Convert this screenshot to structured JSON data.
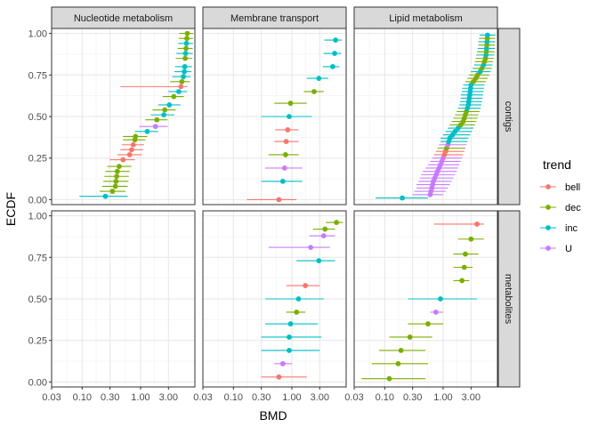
{
  "chart_data": {
    "type": "scatter",
    "xlabel": "BMD",
    "ylabel": "ECDF",
    "x_scale": "log10",
    "xlim": [
      0.03,
      8.5
    ],
    "ylim": [
      -0.03,
      1.03
    ],
    "x_ticks": [
      0.03,
      0.1,
      0.3,
      1,
      3
    ],
    "x_tick_labels": [
      "0.03",
      "0.10",
      "0.30",
      "1.00",
      "3.00"
    ],
    "y_ticks": [
      0,
      0.25,
      0.5,
      0.75,
      1
    ],
    "y_tick_labels": [
      "0.00",
      "0.25",
      "0.50",
      "0.75",
      "1.00"
    ],
    "grid": true,
    "columns": [
      "Nucleotide metabolism",
      "Membrane transport",
      "Lipid metabolism"
    ],
    "rows": [
      "contigs",
      "metabolites"
    ],
    "legend": {
      "title": "trend",
      "position": "right",
      "entries": [
        {
          "name": "bell",
          "color": "#F8766D"
        },
        {
          "name": "dec",
          "color": "#7CAE00"
        },
        {
          "name": "inc",
          "color": "#00BFC4"
        },
        {
          "name": "U",
          "color": "#C77CFF"
        }
      ]
    },
    "series_colors": {
      "bell": "#F8766D",
      "dec": "#7CAE00",
      "inc": "#00BFC4",
      "U": "#C77CFF"
    },
    "panels": [
      {
        "column": "Nucleotide metabolism",
        "row": "contigs",
        "points": [
          {
            "trend": "inc",
            "bmd": 0.25,
            "lo": 0.09,
            "hi": 0.6,
            "ecdf": 0.02
          },
          {
            "trend": "dec",
            "bmd": 0.33,
            "lo": 0.2,
            "hi": 0.55,
            "ecdf": 0.05
          },
          {
            "trend": "dec",
            "bmd": 0.37,
            "lo": 0.22,
            "hi": 0.6,
            "ecdf": 0.08
          },
          {
            "trend": "dec",
            "bmd": 0.38,
            "lo": 0.23,
            "hi": 0.62,
            "ecdf": 0.11
          },
          {
            "trend": "dec",
            "bmd": 0.39,
            "lo": 0.24,
            "hi": 0.63,
            "ecdf": 0.14
          },
          {
            "trend": "dec",
            "bmd": 0.4,
            "lo": 0.25,
            "hi": 0.65,
            "ecdf": 0.17
          },
          {
            "trend": "dec",
            "bmd": 0.43,
            "lo": 0.27,
            "hi": 0.7,
            "ecdf": 0.2
          },
          {
            "trend": "bell",
            "bmd": 0.5,
            "lo": 0.3,
            "hi": 0.8,
            "ecdf": 0.24
          },
          {
            "trend": "bell",
            "bmd": 0.65,
            "lo": 0.4,
            "hi": 1.05,
            "ecdf": 0.27
          },
          {
            "trend": "bell",
            "bmd": 0.7,
            "lo": 0.45,
            "hi": 1.1,
            "ecdf": 0.3
          },
          {
            "trend": "bell",
            "bmd": 0.75,
            "lo": 0.48,
            "hi": 1.15,
            "ecdf": 0.33
          },
          {
            "trend": "dec",
            "bmd": 0.8,
            "lo": 0.5,
            "hi": 1.2,
            "ecdf": 0.36
          },
          {
            "trend": "dec",
            "bmd": 0.82,
            "lo": 0.5,
            "hi": 1.3,
            "ecdf": 0.38
          },
          {
            "trend": "inc",
            "bmd": 1.3,
            "lo": 0.8,
            "hi": 2.0,
            "ecdf": 0.41
          },
          {
            "trend": "U",
            "bmd": 1.8,
            "lo": 0.95,
            "hi": 2.9,
            "ecdf": 0.44
          },
          {
            "trend": "dec",
            "bmd": 1.9,
            "lo": 1.2,
            "hi": 2.9,
            "ecdf": 0.48
          },
          {
            "trend": "inc",
            "bmd": 2.5,
            "lo": 1.5,
            "hi": 3.8,
            "ecdf": 0.51
          },
          {
            "trend": "dec",
            "bmd": 2.6,
            "lo": 1.6,
            "hi": 4.0,
            "ecdf": 0.54
          },
          {
            "trend": "inc",
            "bmd": 3.1,
            "lo": 2.0,
            "hi": 4.8,
            "ecdf": 0.57
          },
          {
            "trend": "dec",
            "bmd": 3.7,
            "lo": 2.4,
            "hi": 5.5,
            "ecdf": 0.62
          },
          {
            "trend": "inc",
            "bmd": 4.5,
            "lo": 3.0,
            "hi": 6.2,
            "ecdf": 0.65
          },
          {
            "trend": "bell",
            "bmd": 4.9,
            "lo": 0.45,
            "hi": 6.4,
            "ecdf": 0.68
          },
          {
            "trend": "dec",
            "bmd": 5.1,
            "lo": 3.2,
            "hi": 7.0,
            "ecdf": 0.71
          },
          {
            "trend": "inc",
            "bmd": 5.4,
            "lo": 3.5,
            "hi": 7.2,
            "ecdf": 0.74
          },
          {
            "trend": "inc",
            "bmd": 5.6,
            "lo": 3.8,
            "hi": 7.4,
            "ecdf": 0.77
          },
          {
            "trend": "inc",
            "bmd": 5.7,
            "lo": 3.9,
            "hi": 7.6,
            "ecdf": 0.8
          },
          {
            "trend": "dec",
            "bmd": 5.8,
            "lo": 4.0,
            "hi": 7.7,
            "ecdf": 0.85
          },
          {
            "trend": "inc",
            "bmd": 5.9,
            "lo": 4.1,
            "hi": 7.8,
            "ecdf": 0.88
          },
          {
            "trend": "dec",
            "bmd": 6.0,
            "lo": 4.3,
            "hi": 7.8,
            "ecdf": 0.91
          },
          {
            "trend": "inc",
            "bmd": 6.1,
            "lo": 4.4,
            "hi": 7.9,
            "ecdf": 0.94
          },
          {
            "trend": "dec",
            "bmd": 6.2,
            "lo": 4.5,
            "hi": 7.9,
            "ecdf": 0.97
          },
          {
            "trend": "dec",
            "bmd": 6.3,
            "lo": 4.6,
            "hi": 8.0,
            "ecdf": 1.0
          }
        ]
      },
      {
        "column": "Membrane transport",
        "row": "contigs",
        "points": [
          {
            "trend": "bell",
            "bmd": 0.6,
            "lo": 0.17,
            "hi": 1.2,
            "ecdf": 0.0
          },
          {
            "trend": "inc",
            "bmd": 0.7,
            "lo": 0.3,
            "hi": 1.5,
            "ecdf": 0.11
          },
          {
            "trend": "U",
            "bmd": 0.75,
            "lo": 0.35,
            "hi": 1.5,
            "ecdf": 0.19
          },
          {
            "trend": "dec",
            "bmd": 0.78,
            "lo": 0.4,
            "hi": 1.3,
            "ecdf": 0.27
          },
          {
            "trend": "bell",
            "bmd": 0.8,
            "lo": 0.5,
            "hi": 1.3,
            "ecdf": 0.35
          },
          {
            "trend": "bell",
            "bmd": 0.85,
            "lo": 0.52,
            "hi": 1.3,
            "ecdf": 0.42
          },
          {
            "trend": "inc",
            "bmd": 0.9,
            "lo": 0.3,
            "hi": 2.2,
            "ecdf": 0.5
          },
          {
            "trend": "dec",
            "bmd": 0.95,
            "lo": 0.5,
            "hi": 1.8,
            "ecdf": 0.58
          },
          {
            "trend": "dec",
            "bmd": 2.4,
            "lo": 1.6,
            "hi": 3.5,
            "ecdf": 0.65
          },
          {
            "trend": "inc",
            "bmd": 2.9,
            "lo": 1.8,
            "hi": 4.2,
            "ecdf": 0.73
          },
          {
            "trend": "inc",
            "bmd": 5.0,
            "lo": 3.4,
            "hi": 6.5,
            "ecdf": 0.8
          },
          {
            "trend": "inc",
            "bmd": 5.4,
            "lo": 3.5,
            "hi": 7.0,
            "ecdf": 0.88
          },
          {
            "trend": "inc",
            "bmd": 5.6,
            "lo": 3.6,
            "hi": 7.2,
            "ecdf": 0.96
          }
        ]
      },
      {
        "column": "Lipid metabolism",
        "row": "contigs",
        "points": [
          {
            "trend": "inc",
            "bmd": 0.2,
            "lo": 0.07,
            "hi": 0.55,
            "ecdf": 0.01
          },
          {
            "trend": "U",
            "bmd": 0.6,
            "lo": 0.3,
            "hi": 1.0,
            "ecdf": 0.03
          },
          {
            "trend": "U",
            "bmd": 0.62,
            "lo": 0.32,
            "hi": 1.1,
            "ecdf": 0.05
          },
          {
            "trend": "U",
            "bmd": 0.64,
            "lo": 0.35,
            "hi": 1.2,
            "ecdf": 0.07
          },
          {
            "trend": "U",
            "bmd": 0.66,
            "lo": 0.35,
            "hi": 1.3,
            "ecdf": 0.09
          },
          {
            "trend": "U",
            "bmd": 0.68,
            "lo": 0.38,
            "hi": 1.4,
            "ecdf": 0.11
          },
          {
            "trend": "U",
            "bmd": 0.72,
            "lo": 0.4,
            "hi": 1.5,
            "ecdf": 0.13
          },
          {
            "trend": "U",
            "bmd": 0.76,
            "lo": 0.42,
            "hi": 1.6,
            "ecdf": 0.15
          },
          {
            "trend": "U",
            "bmd": 0.8,
            "lo": 0.45,
            "hi": 1.7,
            "ecdf": 0.17
          },
          {
            "trend": "U",
            "bmd": 0.85,
            "lo": 0.5,
            "hi": 1.8,
            "ecdf": 0.19
          },
          {
            "trend": "U",
            "bmd": 0.9,
            "lo": 0.55,
            "hi": 1.9,
            "ecdf": 0.21
          },
          {
            "trend": "U",
            "bmd": 0.95,
            "lo": 0.6,
            "hi": 2.0,
            "ecdf": 0.23
          },
          {
            "trend": "U",
            "bmd": 1.0,
            "lo": 0.65,
            "hi": 2.1,
            "ecdf": 0.25
          },
          {
            "trend": "bell",
            "bmd": 1.05,
            "lo": 0.7,
            "hi": 2.2,
            "ecdf": 0.27
          },
          {
            "trend": "bell",
            "bmd": 1.1,
            "lo": 0.75,
            "hi": 2.3,
            "ecdf": 0.29
          },
          {
            "trend": "dec",
            "bmd": 1.15,
            "lo": 0.8,
            "hi": 2.4,
            "ecdf": 0.31
          },
          {
            "trend": "U",
            "bmd": 1.2,
            "lo": 0.85,
            "hi": 2.5,
            "ecdf": 0.33
          },
          {
            "trend": "inc",
            "bmd": 1.25,
            "lo": 0.9,
            "hi": 2.6,
            "ecdf": 0.35
          },
          {
            "trend": "inc",
            "bmd": 1.3,
            "lo": 0.9,
            "hi": 2.7,
            "ecdf": 0.37
          },
          {
            "trend": "inc",
            "bmd": 1.45,
            "lo": 1.0,
            "hi": 2.9,
            "ecdf": 0.39
          },
          {
            "trend": "inc",
            "bmd": 1.6,
            "lo": 1.1,
            "hi": 3.1,
            "ecdf": 0.41
          },
          {
            "trend": "inc",
            "bmd": 1.8,
            "lo": 1.2,
            "hi": 3.3,
            "ecdf": 0.43
          },
          {
            "trend": "dec",
            "bmd": 2.0,
            "lo": 1.3,
            "hi": 3.5,
            "ecdf": 0.45
          },
          {
            "trend": "dec",
            "bmd": 2.2,
            "lo": 1.4,
            "hi": 3.7,
            "ecdf": 0.47
          },
          {
            "trend": "dec",
            "bmd": 2.3,
            "lo": 1.5,
            "hi": 3.9,
            "ecdf": 0.49
          },
          {
            "trend": "dec",
            "bmd": 2.4,
            "lo": 1.6,
            "hi": 4.0,
            "ecdf": 0.51
          },
          {
            "trend": "dec",
            "bmd": 2.5,
            "lo": 1.7,
            "hi": 4.2,
            "ecdf": 0.53
          },
          {
            "trend": "inc",
            "bmd": 2.6,
            "lo": 1.8,
            "hi": 4.4,
            "ecdf": 0.55
          },
          {
            "trend": "inc",
            "bmd": 2.7,
            "lo": 1.9,
            "hi": 4.5,
            "ecdf": 0.57
          },
          {
            "trend": "inc",
            "bmd": 2.75,
            "lo": 1.95,
            "hi": 4.6,
            "ecdf": 0.59
          },
          {
            "trend": "inc",
            "bmd": 2.8,
            "lo": 2.0,
            "hi": 4.7,
            "ecdf": 0.61
          },
          {
            "trend": "inc",
            "bmd": 2.85,
            "lo": 2.0,
            "hi": 4.8,
            "ecdf": 0.63
          },
          {
            "trend": "inc",
            "bmd": 2.9,
            "lo": 2.1,
            "hi": 4.9,
            "ecdf": 0.65
          },
          {
            "trend": "inc",
            "bmd": 2.95,
            "lo": 2.1,
            "hi": 5.0,
            "ecdf": 0.67
          },
          {
            "trend": "inc",
            "bmd": 3.0,
            "lo": 2.2,
            "hi": 5.1,
            "ecdf": 0.69
          },
          {
            "trend": "dec",
            "bmd": 3.3,
            "lo": 2.4,
            "hi": 5.4,
            "ecdf": 0.71
          },
          {
            "trend": "dec",
            "bmd": 3.6,
            "lo": 2.6,
            "hi": 5.8,
            "ecdf": 0.73
          },
          {
            "trend": "dec",
            "bmd": 3.9,
            "lo": 2.8,
            "hi": 6.2,
            "ecdf": 0.75
          },
          {
            "trend": "inc",
            "bmd": 4.3,
            "lo": 3.0,
            "hi": 6.5,
            "ecdf": 0.77
          },
          {
            "trend": "dec",
            "bmd": 4.6,
            "lo": 3.2,
            "hi": 6.8,
            "ecdf": 0.79
          },
          {
            "trend": "inc",
            "bmd": 4.9,
            "lo": 3.4,
            "hi": 7.0,
            "ecdf": 0.81
          },
          {
            "trend": "dec",
            "bmd": 5.1,
            "lo": 3.5,
            "hi": 7.2,
            "ecdf": 0.83
          },
          {
            "trend": "dec",
            "bmd": 5.3,
            "lo": 3.6,
            "hi": 7.4,
            "ecdf": 0.85
          },
          {
            "trend": "inc",
            "bmd": 5.4,
            "lo": 3.7,
            "hi": 7.5,
            "ecdf": 0.87
          },
          {
            "trend": "dec",
            "bmd": 5.5,
            "lo": 3.8,
            "hi": 7.6,
            "ecdf": 0.89
          },
          {
            "trend": "inc",
            "bmd": 5.55,
            "lo": 3.9,
            "hi": 7.7,
            "ecdf": 0.91
          },
          {
            "trend": "dec",
            "bmd": 5.6,
            "lo": 4.0,
            "hi": 7.7,
            "ecdf": 0.93
          },
          {
            "trend": "inc",
            "bmd": 5.65,
            "lo": 4.0,
            "hi": 7.8,
            "ecdf": 0.95
          },
          {
            "trend": "dec",
            "bmd": 5.7,
            "lo": 4.1,
            "hi": 7.8,
            "ecdf": 0.97
          },
          {
            "trend": "inc",
            "bmd": 5.75,
            "lo": 4.2,
            "hi": 7.9,
            "ecdf": 0.99
          }
        ]
      },
      {
        "column": "Nucleotide metabolism",
        "row": "metabolites",
        "points": []
      },
      {
        "column": "Membrane transport",
        "row": "metabolites",
        "points": [
          {
            "trend": "bell",
            "bmd": 0.6,
            "lo": 0.3,
            "hi": 1.8,
            "ecdf": 0.03
          },
          {
            "trend": "U",
            "bmd": 0.7,
            "lo": 0.5,
            "hi": 1.0,
            "ecdf": 0.11
          },
          {
            "trend": "inc",
            "bmd": 0.9,
            "lo": 0.3,
            "hi": 3.0,
            "ecdf": 0.19
          },
          {
            "trend": "inc",
            "bmd": 0.9,
            "lo": 0.3,
            "hi": 3.2,
            "ecdf": 0.27
          },
          {
            "trend": "inc",
            "bmd": 0.95,
            "lo": 0.35,
            "hi": 2.8,
            "ecdf": 0.35
          },
          {
            "trend": "dec",
            "bmd": 1.2,
            "lo": 0.8,
            "hi": 1.7,
            "ecdf": 0.42
          },
          {
            "trend": "inc",
            "bmd": 1.3,
            "lo": 0.35,
            "hi": 3.5,
            "ecdf": 0.5
          },
          {
            "trend": "bell",
            "bmd": 1.7,
            "lo": 0.8,
            "hi": 3.0,
            "ecdf": 0.58
          },
          {
            "trend": "inc",
            "bmd": 2.9,
            "lo": 1.2,
            "hi": 5.5,
            "ecdf": 0.73
          },
          {
            "trend": "U",
            "bmd": 2.1,
            "lo": 0.4,
            "hi": 4.5,
            "ecdf": 0.81
          },
          {
            "trend": "U",
            "bmd": 3.5,
            "lo": 2.0,
            "hi": 5.5,
            "ecdf": 0.88
          },
          {
            "trend": "dec",
            "bmd": 3.7,
            "lo": 2.3,
            "hi": 5.5,
            "ecdf": 0.92
          },
          {
            "trend": "dec",
            "bmd": 5.8,
            "lo": 3.8,
            "hi": 7.5,
            "ecdf": 0.96
          }
        ]
      },
      {
        "column": "Lipid metabolism",
        "row": "metabolites",
        "points": [
          {
            "trend": "dec",
            "bmd": 0.12,
            "lo": 0.04,
            "hi": 0.5,
            "ecdf": 0.02
          },
          {
            "trend": "dec",
            "bmd": 0.17,
            "lo": 0.06,
            "hi": 0.55,
            "ecdf": 0.11
          },
          {
            "trend": "dec",
            "bmd": 0.19,
            "lo": 0.08,
            "hi": 0.5,
            "ecdf": 0.19
          },
          {
            "trend": "dec",
            "bmd": 0.27,
            "lo": 0.12,
            "hi": 0.65,
            "ecdf": 0.27
          },
          {
            "trend": "dec",
            "bmd": 0.55,
            "lo": 0.25,
            "hi": 1.0,
            "ecdf": 0.35
          },
          {
            "trend": "U",
            "bmd": 0.75,
            "lo": 0.6,
            "hi": 1.0,
            "ecdf": 0.42
          },
          {
            "trend": "inc",
            "bmd": 0.9,
            "lo": 0.25,
            "hi": 3.8,
            "ecdf": 0.5
          },
          {
            "trend": "dec",
            "bmd": 2.1,
            "lo": 1.5,
            "hi": 2.8,
            "ecdf": 0.61
          },
          {
            "trend": "dec",
            "bmd": 2.3,
            "lo": 1.5,
            "hi": 3.2,
            "ecdf": 0.69
          },
          {
            "trend": "dec",
            "bmd": 2.4,
            "lo": 1.5,
            "hi": 4.0,
            "ecdf": 0.77
          },
          {
            "trend": "dec",
            "bmd": 3.0,
            "lo": 1.8,
            "hi": 5.0,
            "ecdf": 0.86
          },
          {
            "trend": "bell",
            "bmd": 3.8,
            "lo": 0.7,
            "hi": 5.0,
            "ecdf": 0.95
          }
        ]
      }
    ]
  }
}
